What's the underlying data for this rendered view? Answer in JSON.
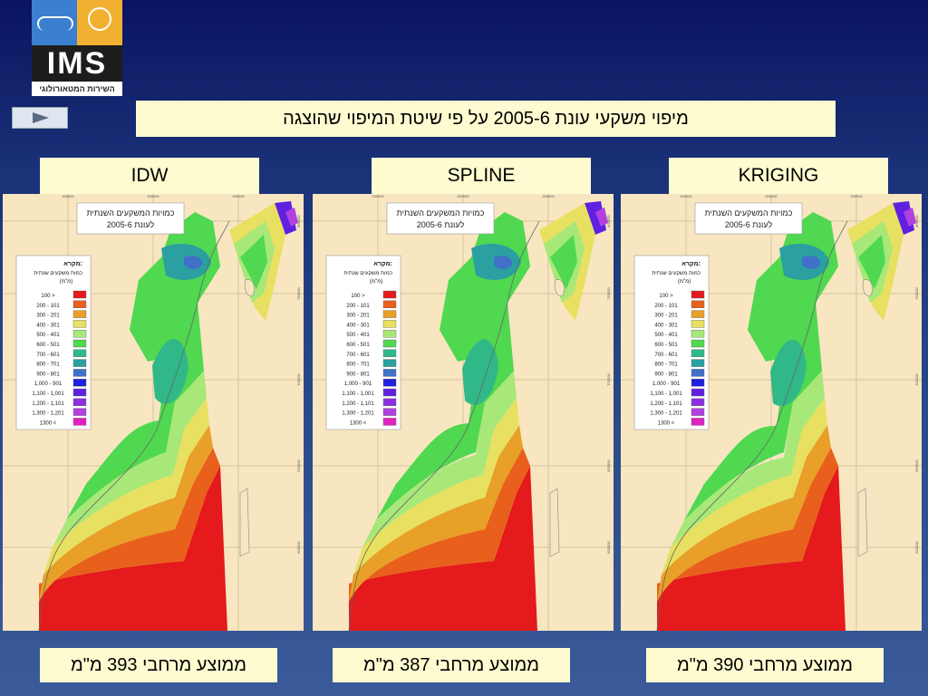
{
  "header": {
    "logo": {
      "name": "IMS",
      "subtitle": "השירות המטאורולוגי"
    },
    "title": "מיפוי משקעי עונת 2005-6 על פי שיטת המיפוי שהוצגה",
    "play_icon": "play-icon"
  },
  "map_common": {
    "map_title": "כמויות המשקעים השנתית",
    "map_subtitle": "לעונת 2005-6",
    "legend_title": "מקרא:",
    "legend_sub1": "כמות משקעים שנתית",
    "legend_sub2": "(מ\"מ)",
    "grid_top": [
      "150000",
      "200000",
      "250000"
    ],
    "grid_side": [
      "800000",
      "750000",
      "700000",
      "650000",
      "600000"
    ],
    "legend": [
      {
        "label": "100 >",
        "color": "#e41a1c"
      },
      {
        "label": "200 - 101",
        "color": "#e8601c"
      },
      {
        "label": "300 - 201",
        "color": "#e8a028"
      },
      {
        "label": "400 - 301",
        "color": "#e8e060"
      },
      {
        "label": "500 - 401",
        "color": "#a8e878"
      },
      {
        "label": "600 - 501",
        "color": "#50d850"
      },
      {
        "label": "700 - 601",
        "color": "#30b888"
      },
      {
        "label": "800 - 701",
        "color": "#2aa0a0"
      },
      {
        "label": "900 - 801",
        "color": "#4070c8"
      },
      {
        "label": "1,000 - 901",
        "color": "#2020e0"
      },
      {
        "label": "1,100 - 1,001",
        "color": "#6020e0"
      },
      {
        "label": "1,200 - 1,101",
        "color": "#8a30e0"
      },
      {
        "label": "1,300 - 1,201",
        "color": "#b040e0"
      },
      {
        "label": "1300 <",
        "color": "#e020c0"
      }
    ]
  },
  "panels": [
    {
      "method": "IDW",
      "average": "ממוצע מרחבי 393 מ\"מ"
    },
    {
      "method": "SPLINE",
      "average": "ממוצע מרחבי 387 מ\"מ"
    },
    {
      "method": "KRIGING",
      "average": "ממוצע מרחבי 390 מ\"מ"
    }
  ]
}
